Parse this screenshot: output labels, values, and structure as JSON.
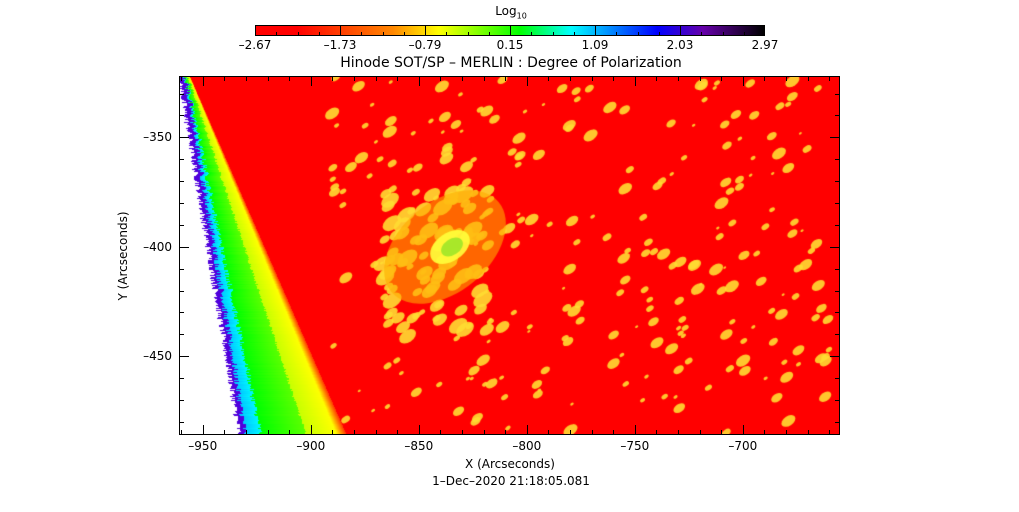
{
  "chart_data": {
    "type": "heatmap",
    "title": "Hinode SOT/SP – MERLIN : Degree of Polarization",
    "xlabel": "X (Arcseconds)",
    "ylabel": "Y (Arcseconds)",
    "footer": "1–Dec–2020 21:18:05.081",
    "xlim": [
      -961,
      -655
    ],
    "ylim": [
      -486,
      -322
    ],
    "xticks": [
      -950,
      -900,
      -850,
      -800,
      -750,
      -700
    ],
    "xtick_labels": [
      "–950",
      "–900",
      "–850",
      "–800",
      "–750",
      "–700"
    ],
    "yticks": [
      -350,
      -400,
      -450
    ],
    "ytick_labels": [
      "–350",
      "–400",
      "–450"
    ],
    "colorbar": {
      "label_base": "Log",
      "label_sub": "10",
      "range": [
        -2.67,
        2.97
      ],
      "ticks": [
        -2.67,
        -1.73,
        -0.79,
        0.15,
        1.09,
        2.03,
        2.97
      ],
      "tick_labels": [
        "–2.67",
        "–1.73",
        "–0.79",
        "0.15",
        "1.09",
        "2.03",
        "2.97"
      ],
      "colormap": "rainbow (red → yellow → green → cyan → blue → purple → black)"
    },
    "colors": {
      "background": "#ff0000",
      "active": "#ffdd33",
      "limb": "#00ff00"
    }
  }
}
